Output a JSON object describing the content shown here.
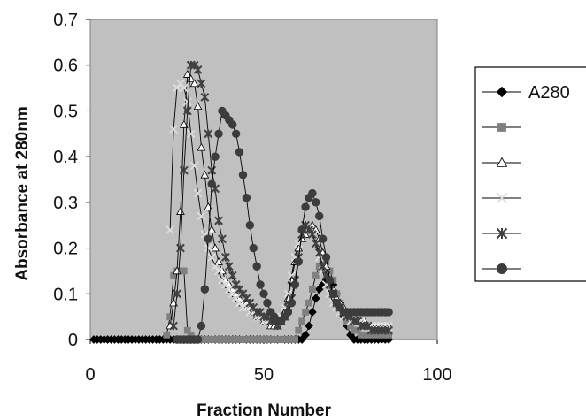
{
  "chart_data": {
    "type": "line",
    "title": "",
    "xlabel": "Fraction Number",
    "ylabel": "Absorbance at 280nm",
    "xlim": [
      0,
      100
    ],
    "ylim": [
      0,
      0.7
    ],
    "xticks": [
      0,
      50,
      100
    ],
    "yticks": [
      0,
      0.1,
      0.2,
      0.3,
      0.4,
      0.5,
      0.6,
      0.7
    ],
    "x_tick_labels": [
      "0",
      "50",
      "100"
    ],
    "y_tick_labels": [
      "0",
      "0.1",
      "0.2",
      "0.3",
      "0.4",
      "0.5",
      "0.6",
      "0.7"
    ],
    "grid": false,
    "plot_background": "#c0c0c0",
    "legend_position": "right",
    "series": [
      {
        "name": "A280",
        "marker": "diamond",
        "color": "#000000",
        "x": [
          1,
          2,
          3,
          4,
          5,
          6,
          7,
          8,
          9,
          10,
          11,
          12,
          13,
          14,
          15,
          16,
          17,
          18,
          19,
          20,
          21,
          22,
          23,
          24,
          25,
          26,
          27,
          28,
          29,
          30,
          31,
          32,
          33,
          34,
          35,
          36,
          37,
          38,
          39,
          40,
          41,
          42,
          43,
          44,
          45,
          46,
          47,
          48,
          49,
          50,
          51,
          52,
          53,
          54,
          55,
          56,
          57,
          58,
          59,
          60,
          61,
          62,
          63,
          64,
          65,
          66,
          67,
          68,
          69,
          70,
          71,
          72,
          73,
          74,
          75,
          76,
          77,
          78,
          79,
          80,
          81,
          82,
          83,
          84,
          85,
          86
        ],
        "y": [
          0,
          0,
          0,
          0,
          0,
          0,
          0,
          0,
          0,
          0,
          0,
          0,
          0,
          0,
          0,
          0,
          0,
          0,
          0,
          0,
          0,
          0,
          0,
          0,
          0,
          0,
          0,
          0,
          0,
          0,
          0,
          0,
          0,
          0,
          0,
          0,
          0,
          0,
          0,
          0,
          0,
          0,
          0,
          0,
          0,
          0,
          0,
          0,
          0,
          0,
          0,
          0,
          0,
          0,
          0,
          0,
          0,
          0,
          0,
          0,
          0,
          0.01,
          0.03,
          0.06,
          0.09,
          0.11,
          0.12,
          0.13,
          0.13,
          0.12,
          0.1,
          0.08,
          0.05,
          0.03,
          0.01,
          0,
          0,
          0,
          0,
          0,
          0,
          0,
          0,
          0,
          0,
          0
        ]
      },
      {
        "name": "",
        "marker": "square",
        "color": "#808080",
        "x": [
          22,
          23,
          24,
          25,
          26,
          27,
          28,
          29,
          30,
          31,
          32,
          33,
          34,
          35,
          36,
          37,
          38,
          39,
          40,
          41,
          42,
          43,
          44,
          45,
          46,
          47,
          48,
          49,
          50,
          51,
          52,
          53,
          54,
          55,
          56,
          57,
          58,
          59,
          60,
          61,
          62,
          63,
          64,
          65,
          66,
          67,
          68,
          69,
          70,
          71,
          72,
          73,
          74,
          75,
          76,
          77,
          78,
          79,
          80,
          81,
          82,
          83,
          84,
          85,
          86
        ],
        "y": [
          0.01,
          0.05,
          0.14,
          0.15,
          0.15,
          0.15,
          0.02,
          0.01,
          0,
          0,
          0,
          0,
          0,
          0,
          0,
          0,
          0,
          0,
          0,
          0,
          0,
          0,
          0,
          0,
          0,
          0,
          0,
          0,
          0,
          0,
          0,
          0,
          0,
          0,
          0,
          0,
          0,
          0,
          0.02,
          0.04,
          0.06,
          0.08,
          0.11,
          0.14,
          0.16,
          0.17,
          0.17,
          0.15,
          0.13,
          0.1,
          0.08,
          0.06,
          0.04,
          0.03,
          0.02,
          0.02,
          0.01,
          0.01,
          0.01,
          0.01,
          0.01,
          0.01,
          0.01,
          0.01,
          0.01
        ]
      },
      {
        "name": "",
        "marker": "triangle",
        "color": "#ffffff",
        "x": [
          23,
          24,
          25,
          26,
          27,
          28,
          29,
          30,
          31,
          32,
          33,
          34,
          35,
          36,
          37,
          38,
          39,
          40,
          41,
          42,
          43,
          44,
          45,
          46,
          47,
          48,
          49,
          50,
          51,
          52,
          53,
          54,
          55,
          56,
          57,
          58,
          59,
          60,
          61,
          62,
          63,
          64,
          65,
          66,
          67,
          68,
          69,
          70,
          71,
          72,
          73,
          74,
          75,
          76,
          77,
          78,
          79,
          80,
          81,
          82,
          83,
          84,
          85,
          86
        ],
        "y": [
          0.03,
          0.08,
          0.15,
          0.28,
          0.47,
          0.58,
          0.57,
          0.56,
          0.51,
          0.42,
          0.36,
          0.29,
          0.24,
          0.2,
          0.17,
          0.15,
          0.13,
          0.12,
          0.11,
          0.1,
          0.09,
          0.08,
          0.08,
          0.07,
          0.06,
          0.05,
          0.05,
          0.04,
          0.04,
          0.03,
          0.03,
          0.03,
          0.04,
          0.06,
          0.09,
          0.13,
          0.17,
          0.2,
          0.22,
          0.23,
          0.24,
          0.25,
          0.24,
          0.22,
          0.19,
          0.16,
          0.13,
          0.11,
          0.09,
          0.08,
          0.07,
          0.06,
          0.05,
          0.05,
          0.04,
          0.04,
          0.04,
          0.03,
          0.03,
          0.03,
          0.03,
          0.03,
          0.03,
          0.03
        ]
      },
      {
        "name": "",
        "marker": "x",
        "color": "#dcdcdc",
        "x": [
          23,
          24,
          25,
          26,
          27,
          28,
          29,
          30,
          31,
          32,
          33,
          34,
          35,
          36,
          37,
          38,
          39,
          40,
          41,
          42,
          43,
          44,
          45,
          46,
          47,
          48,
          49,
          50,
          51,
          52,
          53,
          54,
          55,
          56,
          57,
          58,
          59,
          60,
          61,
          62,
          63,
          64,
          65,
          66,
          67,
          68,
          69,
          70,
          71,
          72,
          73,
          74,
          75,
          76,
          77,
          78,
          79,
          80,
          81,
          82,
          83,
          84,
          85,
          86
        ],
        "y": [
          0.24,
          0.46,
          0.55,
          0.56,
          0.55,
          0.52,
          0.45,
          0.38,
          0.32,
          0.27,
          0.23,
          0.2,
          0.18,
          0.16,
          0.15,
          0.13,
          0.12,
          0.11,
          0.1,
          0.09,
          0.08,
          0.07,
          0.07,
          0.06,
          0.06,
          0.05,
          0.05,
          0.04,
          0.04,
          0.04,
          0.04,
          0.04,
          0.05,
          0.07,
          0.1,
          0.14,
          0.18,
          0.21,
          0.23,
          0.24,
          0.24,
          0.23,
          0.21,
          0.18,
          0.15,
          0.12,
          0.1,
          0.08,
          0.07,
          0.06,
          0.05,
          0.05,
          0.04,
          0.04,
          0.04,
          0.04,
          0.03,
          0.03,
          0.03,
          0.03,
          0.03,
          0.03,
          0.03,
          0.03
        ]
      },
      {
        "name": "",
        "marker": "asterisk",
        "color": "#404040",
        "x": [
          24,
          25,
          26,
          27,
          28,
          29,
          30,
          31,
          32,
          33,
          34,
          35,
          36,
          37,
          38,
          39,
          40,
          41,
          42,
          43,
          44,
          45,
          46,
          47,
          48,
          49,
          50,
          51,
          52,
          53,
          54,
          55,
          56,
          57,
          58,
          59,
          60,
          61,
          62,
          63,
          64,
          65,
          66,
          67,
          68,
          69,
          70,
          71,
          72,
          73,
          74,
          75,
          76,
          77,
          78,
          79,
          80,
          81,
          82,
          83,
          84,
          85,
          86
        ],
        "y": [
          0.03,
          0.1,
          0.2,
          0.37,
          0.5,
          0.6,
          0.6,
          0.59,
          0.56,
          0.53,
          0.45,
          0.37,
          0.33,
          0.26,
          0.22,
          0.18,
          0.16,
          0.14,
          0.12,
          0.11,
          0.1,
          0.09,
          0.08,
          0.07,
          0.06,
          0.06,
          0.05,
          0.05,
          0.04,
          0.04,
          0.03,
          0.04,
          0.05,
          0.07,
          0.09,
          0.13,
          0.18,
          0.23,
          0.25,
          0.24,
          0.23,
          0.21,
          0.19,
          0.16,
          0.14,
          0.12,
          0.1,
          0.08,
          0.07,
          0.06,
          0.05,
          0.05,
          0.04,
          0.04,
          0.03,
          0.03,
          0.03,
          0.02,
          0.02,
          0.02,
          0.02,
          0.02,
          0.02
        ]
      },
      {
        "name": "",
        "marker": "circle",
        "color": "#3c3c3c",
        "x": [
          25,
          26,
          27,
          28,
          29,
          30,
          31,
          32,
          33,
          34,
          35,
          36,
          37,
          38,
          39,
          40,
          41,
          42,
          43,
          44,
          45,
          46,
          47,
          48,
          49,
          50,
          51,
          52,
          53,
          54,
          55,
          56,
          57,
          58,
          59,
          60,
          61,
          62,
          63,
          64,
          65,
          66,
          67,
          68,
          69,
          70,
          71,
          72,
          73,
          74,
          75,
          76,
          77,
          78,
          79,
          80,
          81,
          82,
          83,
          84,
          85,
          86
        ],
        "y": [
          0,
          0,
          0,
          0,
          0,
          0,
          0,
          0.03,
          0.11,
          0.22,
          0.34,
          0.4,
          0.45,
          0.5,
          0.49,
          0.48,
          0.47,
          0.45,
          0.41,
          0.36,
          0.31,
          0.25,
          0.2,
          0.16,
          0.12,
          0.1,
          0.08,
          0.06,
          0.05,
          0.04,
          0.04,
          0.05,
          0.06,
          0.08,
          0.12,
          0.17,
          0.24,
          0.29,
          0.31,
          0.32,
          0.3,
          0.27,
          0.22,
          0.18,
          0.13,
          0.1,
          0.08,
          0.07,
          0.06,
          0.06,
          0.06,
          0.06,
          0.06,
          0.06,
          0.06,
          0.06,
          0.06,
          0.06,
          0.06,
          0.06,
          0.06,
          0.06
        ]
      }
    ]
  }
}
